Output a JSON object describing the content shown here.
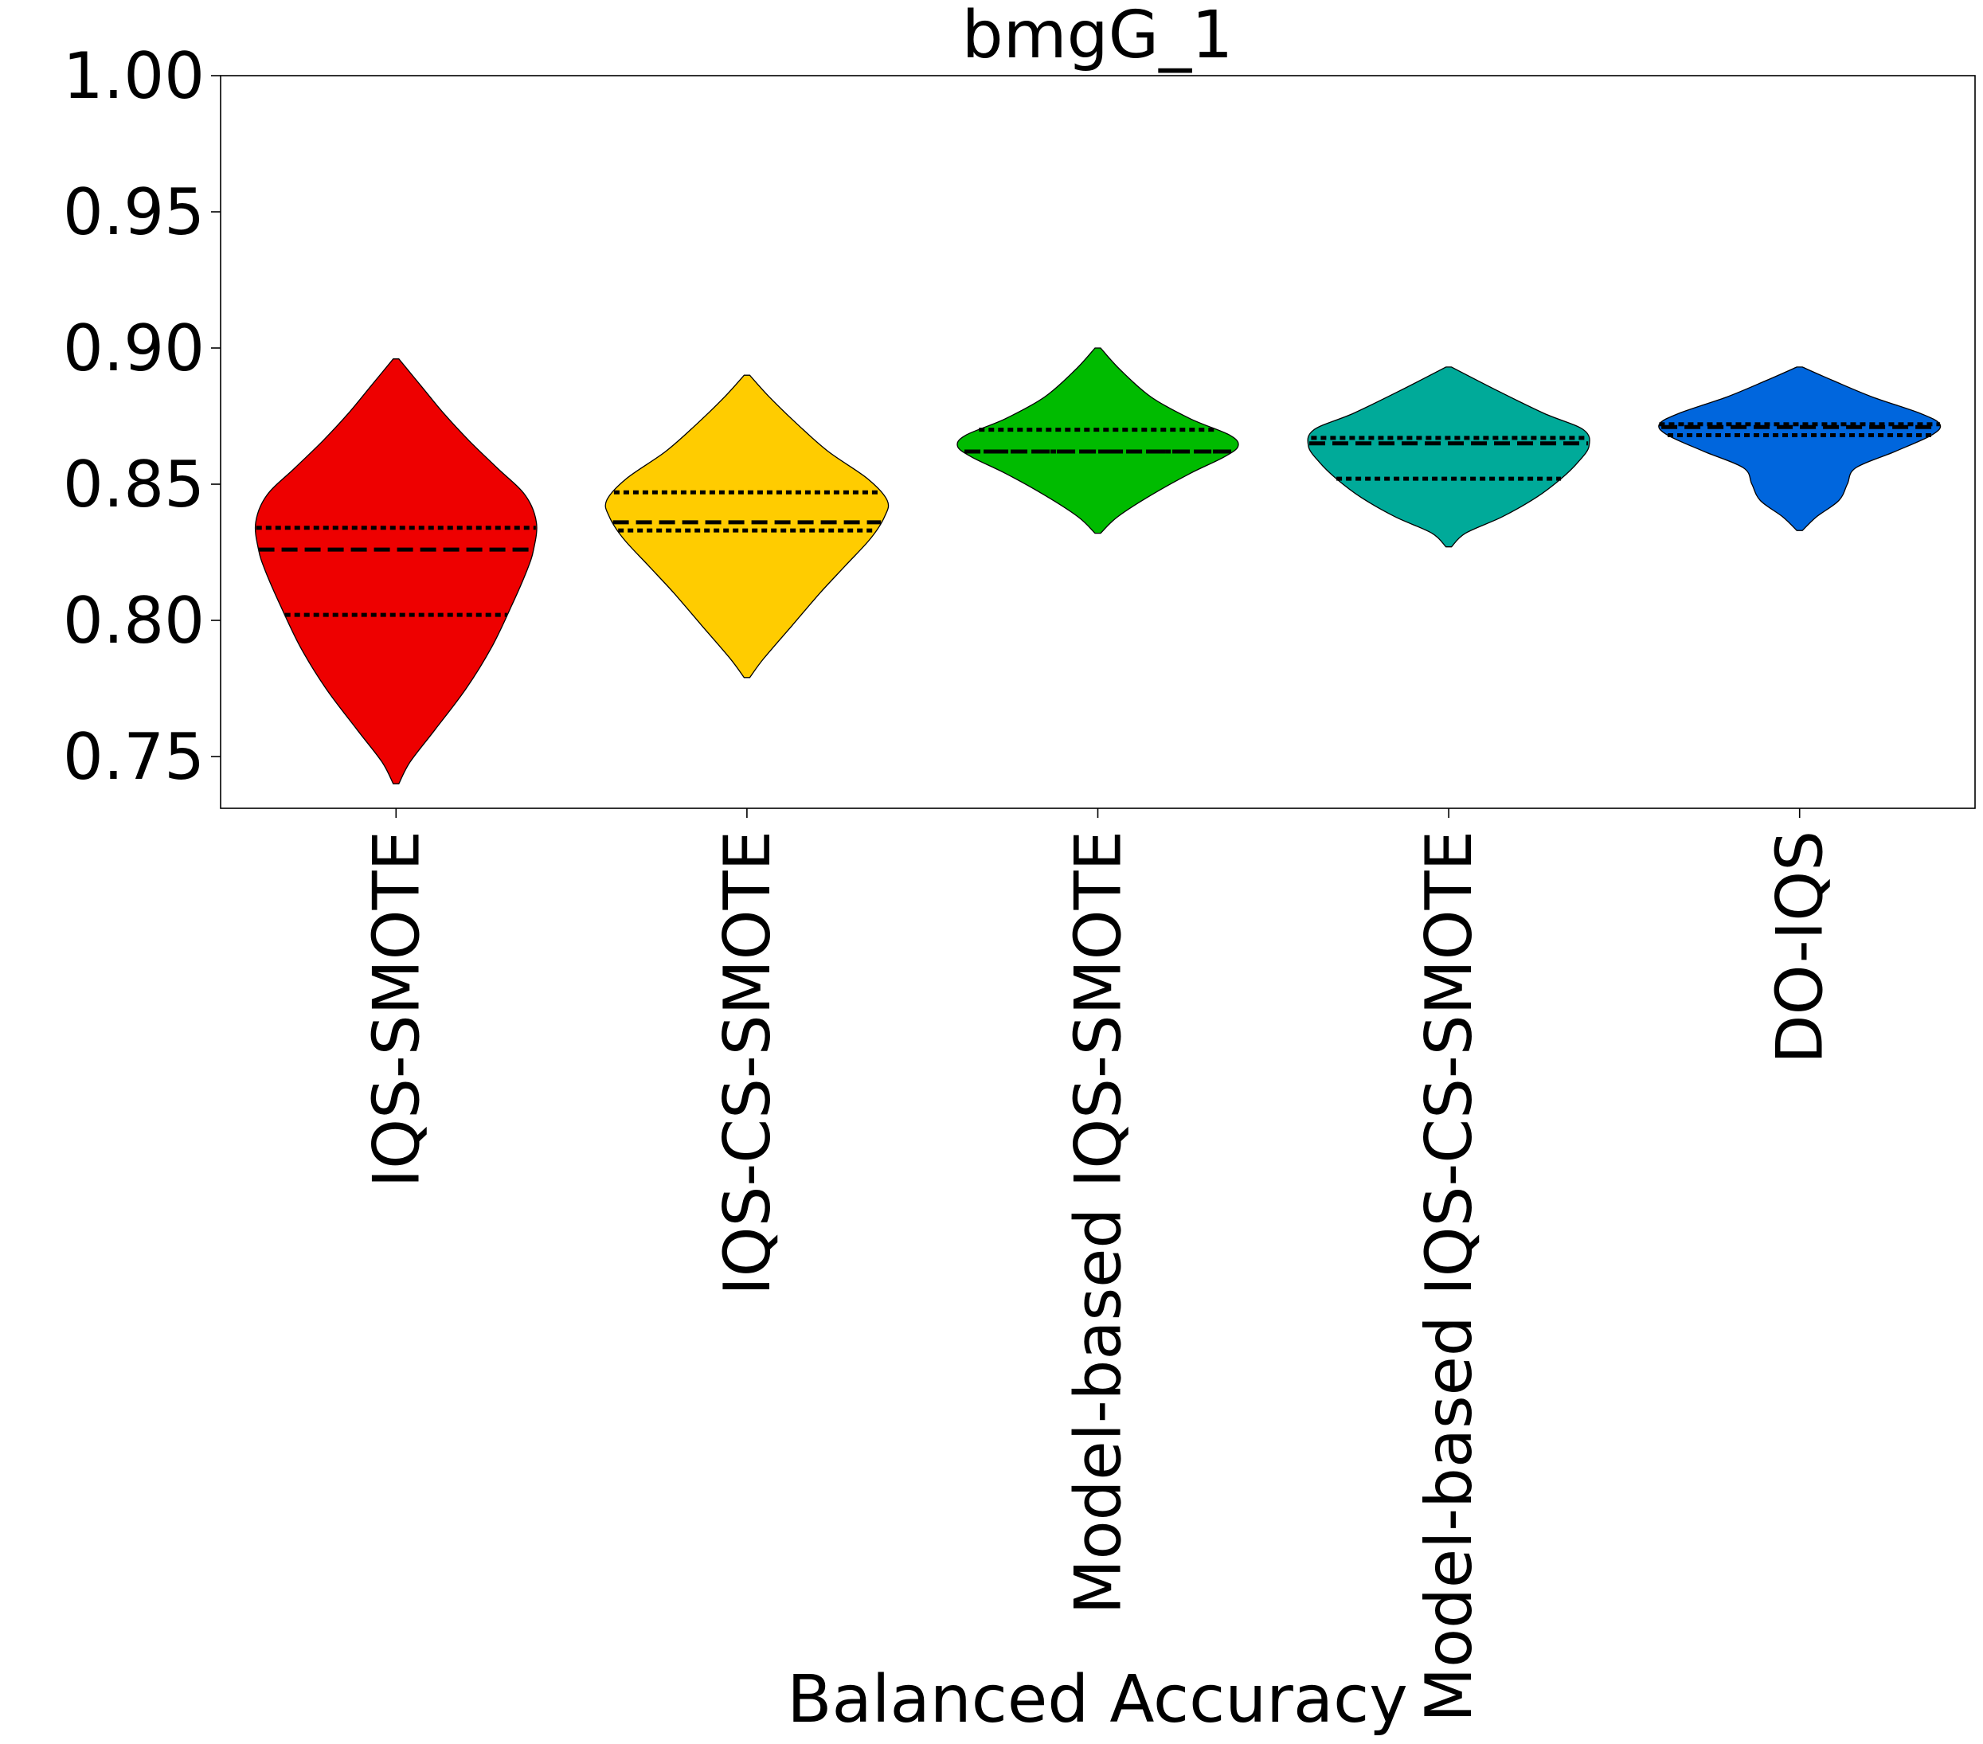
{
  "chart_data": {
    "type": "violin",
    "title": "bmgG_1",
    "xlabel": "Balanced Accuracy",
    "ylabel": "",
    "ylim": [
      0.731,
      1.0
    ],
    "yticks": [
      0.75,
      0.8,
      0.85,
      0.9,
      0.95,
      1.0
    ],
    "ytick_labels": [
      "0.75",
      "0.80",
      "0.85",
      "0.90",
      "0.95",
      "1.00"
    ],
    "grid": false,
    "categories": [
      "IQS-SMOTE",
      "IQS-CS-SMOTE",
      "Model-based IQS-SMOTE",
      "Model-based IQS-CS-SMOTE",
      "DO-IQS"
    ],
    "series": [
      {
        "category": "IQS-SMOTE",
        "color": "#ee0000",
        "min": 0.74,
        "max": 0.896,
        "q1": 0.802,
        "median": 0.826,
        "q3": 0.834,
        "profile": [
          [
            0.74,
            0.02
          ],
          [
            0.748,
            0.1
          ],
          [
            0.76,
            0.28
          ],
          [
            0.775,
            0.5
          ],
          [
            0.79,
            0.68
          ],
          [
            0.805,
            0.82
          ],
          [
            0.818,
            0.93
          ],
          [
            0.826,
            0.98
          ],
          [
            0.836,
            1.0
          ],
          [
            0.846,
            0.92
          ],
          [
            0.856,
            0.72
          ],
          [
            0.866,
            0.52
          ],
          [
            0.876,
            0.34
          ],
          [
            0.886,
            0.18
          ],
          [
            0.896,
            0.02
          ]
        ]
      },
      {
        "category": "IQS-CS-SMOTE",
        "color": "#ffcc00",
        "min": 0.779,
        "max": 0.89,
        "q1": 0.833,
        "median": 0.836,
        "q3": 0.847,
        "profile": [
          [
            0.779,
            0.02
          ],
          [
            0.786,
            0.12
          ],
          [
            0.798,
            0.32
          ],
          [
            0.81,
            0.52
          ],
          [
            0.82,
            0.7
          ],
          [
            0.83,
            0.88
          ],
          [
            0.838,
            0.98
          ],
          [
            0.844,
            1.0
          ],
          [
            0.852,
            0.86
          ],
          [
            0.862,
            0.58
          ],
          [
            0.872,
            0.36
          ],
          [
            0.882,
            0.16
          ],
          [
            0.89,
            0.02
          ]
        ]
      },
      {
        "category": "Model-based IQS-SMOTE",
        "color": "#00bb00",
        "min": 0.832,
        "max": 0.9,
        "q1": 0.862,
        "median": 0.862,
        "q3": 0.87,
        "profile": [
          [
            0.832,
            0.02
          ],
          [
            0.838,
            0.14
          ],
          [
            0.846,
            0.38
          ],
          [
            0.854,
            0.66
          ],
          [
            0.86,
            0.9
          ],
          [
            0.864,
            1.0
          ],
          [
            0.868,
            0.94
          ],
          [
            0.874,
            0.66
          ],
          [
            0.882,
            0.38
          ],
          [
            0.892,
            0.16
          ],
          [
            0.9,
            0.02
          ]
        ]
      },
      {
        "category": "Model-based IQS-CS-SMOTE",
        "color": "#00aa99",
        "min": 0.827,
        "max": 0.893,
        "q1": 0.852,
        "median": 0.865,
        "q3": 0.867,
        "profile": [
          [
            0.827,
            0.02
          ],
          [
            0.832,
            0.12
          ],
          [
            0.838,
            0.38
          ],
          [
            0.845,
            0.62
          ],
          [
            0.852,
            0.8
          ],
          [
            0.858,
            0.92
          ],
          [
            0.864,
            1.0
          ],
          [
            0.87,
            0.96
          ],
          [
            0.876,
            0.68
          ],
          [
            0.884,
            0.36
          ],
          [
            0.893,
            0.02
          ]
        ]
      },
      {
        "category": "DO-IQS",
        "color": "#0066dd",
        "min": 0.833,
        "max": 0.893,
        "q1": 0.868,
        "median": 0.871,
        "q3": 0.872,
        "profile": [
          [
            0.833,
            0.02
          ],
          [
            0.838,
            0.12
          ],
          [
            0.844,
            0.28
          ],
          [
            0.85,
            0.34
          ],
          [
            0.856,
            0.4
          ],
          [
            0.862,
            0.68
          ],
          [
            0.868,
            0.94
          ],
          [
            0.872,
            1.0
          ],
          [
            0.876,
            0.86
          ],
          [
            0.882,
            0.52
          ],
          [
            0.888,
            0.24
          ],
          [
            0.893,
            0.02
          ]
        ]
      }
    ]
  }
}
